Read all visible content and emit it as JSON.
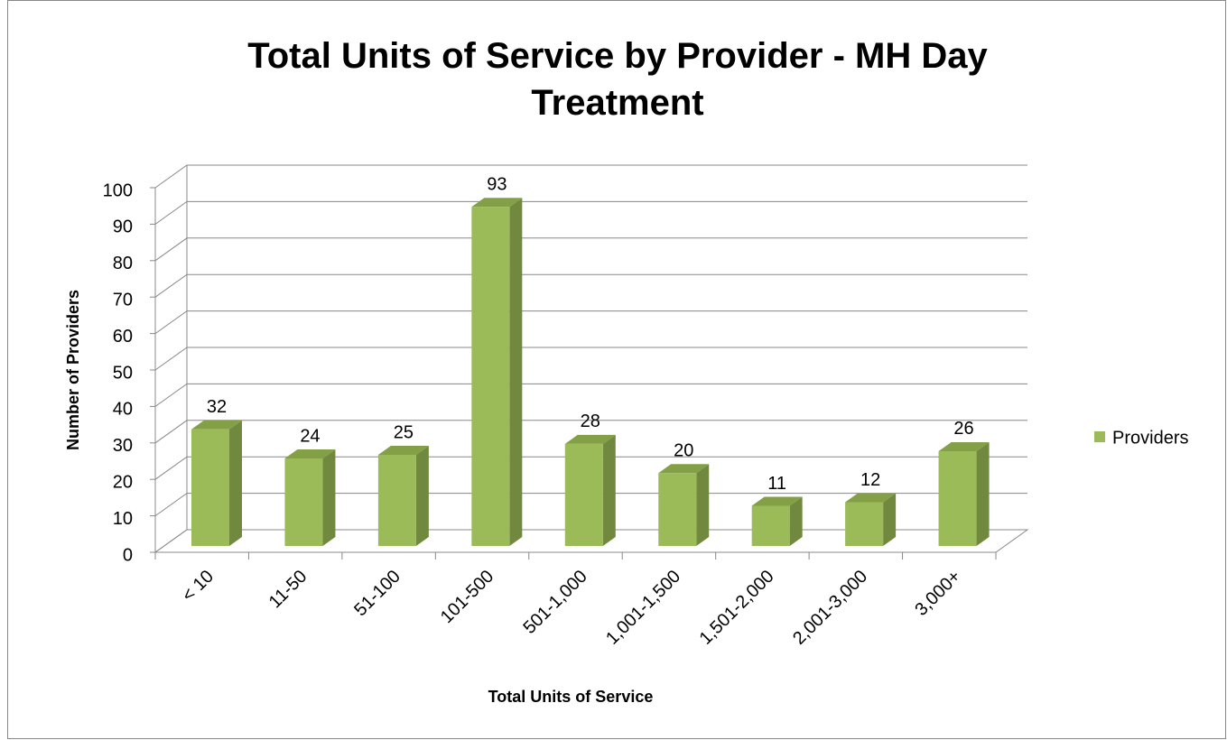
{
  "chart_data": {
    "type": "bar3d",
    "title": "Total Units of Service by Provider - MH Day Treatment",
    "x_label": "Total Units of Service",
    "y_label": "Number of Providers",
    "categories": [
      "< 10",
      "11-50",
      "51-100",
      "101-500",
      "501-1,000",
      "1,001-1,500",
      "1,501-2,000",
      "2,001-3,000",
      "3,000+"
    ],
    "series": [
      {
        "name": "Providers",
        "color": "#9bbb59",
        "values": [
          32,
          24,
          25,
          93,
          28,
          20,
          11,
          12,
          26
        ]
      }
    ],
    "ylim": [
      0,
      100
    ],
    "yticks": [
      0,
      10,
      20,
      30,
      40,
      50,
      60,
      70,
      80,
      90,
      100
    ],
    "grid": true,
    "legend": "right"
  }
}
